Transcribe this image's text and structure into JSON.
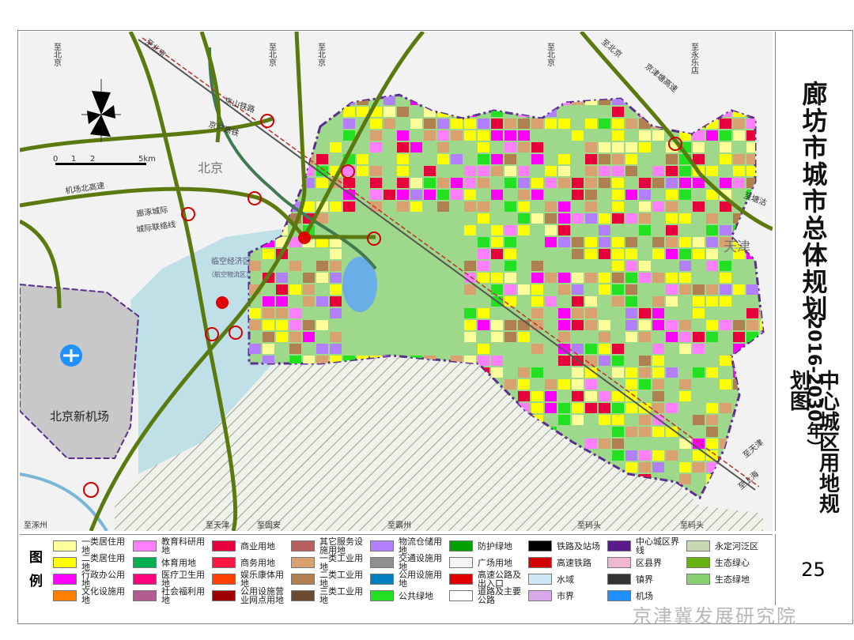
{
  "title": {
    "main": "廊坊市城市总体规划",
    "period": "（2016-2030年）",
    "sub": "中心城区用地规划图"
  },
  "page_number": "25",
  "watermark": "京津冀发展研究院",
  "legend": {
    "heading": "图例",
    "items": [
      {
        "label": "一类居住用地",
        "color": "#ffff99"
      },
      {
        "label": "二类居住用地",
        "color": "#ffff00"
      },
      {
        "label": "行政办公用地",
        "color": "#ff00ff"
      },
      {
        "label": "文化设施用地",
        "color": "#ff7f00"
      },
      {
        "label": "教育科研用地",
        "color": "#ff80ff"
      },
      {
        "label": "体育用地",
        "color": "#00b050"
      },
      {
        "label": "医疗卫生用地",
        "color": "#ff0080"
      },
      {
        "label": "社会福利用地",
        "color": "#b35c8f"
      },
      {
        "label": "商业用地",
        "color": "#e8003c"
      },
      {
        "label": "商务用地",
        "color": "#ff1744"
      },
      {
        "label": "娱乐康体用地",
        "color": "#ff4000"
      },
      {
        "label": "公用设施营业网点用地",
        "color": "#a00000"
      },
      {
        "label": "其它服务设施用地",
        "color": "#b86060"
      },
      {
        "label": "一类工业用地",
        "color": "#d9a070"
      },
      {
        "label": "二类工业用地",
        "color": "#b08050"
      },
      {
        "label": "三类工业用地",
        "color": "#6b4a30"
      },
      {
        "label": "物流仓储用地",
        "color": "#b27fff"
      },
      {
        "label": "交通设施用地",
        "color": "#909090"
      },
      {
        "label": "公用设施用地",
        "color": "#0080c0"
      },
      {
        "label": "公共绿地",
        "color": "#22e022"
      },
      {
        "label": "防护绿地",
        "color": "#00a000"
      },
      {
        "label": "广场用地",
        "color": "#f4f4f4"
      },
      {
        "label": "高速公路及出入口",
        "color": "#e00000"
      },
      {
        "label": "道路及主要公路",
        "color": "#ffffff"
      },
      {
        "label": "铁路及站场",
        "color": "#000000"
      },
      {
        "label": "高速铁路",
        "color": "#d00000"
      },
      {
        "label": "水域",
        "color": "#cfe8f5"
      },
      {
        "label": "市界",
        "color": "#d8a8e8"
      },
      {
        "label": "中心城区界线",
        "color": "#5a1a8a"
      },
      {
        "label": "区县界",
        "color": "#f0b8d0"
      },
      {
        "label": "镇界",
        "color": "#333333"
      },
      {
        "label": "机场",
        "color": "#1e90ff"
      },
      {
        "label": "永定河泛区",
        "color": "#c8d8b0"
      },
      {
        "label": "生态绿心",
        "color": "#66b010"
      },
      {
        "label": "生态绿地",
        "color": "#88d070"
      }
    ]
  },
  "map": {
    "regions": {
      "beijing": "北京",
      "tianjin": "天津",
      "airport": "北京新机场",
      "lingkong": "临空经济区",
      "lingkong_sub": "（航空物流区）"
    },
    "roads": {
      "jingshan": "京山铁路",
      "jinghu": "京沪高铁",
      "airport_north": "机场北高速",
      "langzhuo": "廊涿城际",
      "intercity_link": "城际联络线",
      "jingjintang": "京津塘高速"
    },
    "directions": {
      "to_beijing_1": "至北京",
      "to_beijing_2": "至北京",
      "to_beijing_3": "至北京",
      "to_beijing_4": "至北京",
      "to_beijing_5": "至北京",
      "to_beijing_6": "至北京",
      "to_yongledian": "至永乐店",
      "to_tanggu": "至塘沽",
      "to_tianjin_e": "至天津",
      "to_shanghai": "至上海",
      "to_zhuozhou": "至涿州",
      "to_tianjin_s": "至天津",
      "to_guan": "至固安",
      "to_bazhou": "至霸州",
      "to_matou_1": "至码头",
      "to_matou_2": "至码头"
    },
    "scale": {
      "ticks": [
        "0",
        "1",
        "2",
        "5km"
      ]
    },
    "colors": {
      "background": "#f2f2f2",
      "central_green": "#9ed88a",
      "boundary": "#5a2d91",
      "highway": "#5a7a10",
      "interchange": "#d00000",
      "lake": "#6aaee8",
      "airport": "#c8c8c8",
      "tianjin_zone": "#bfe0e6"
    }
  }
}
